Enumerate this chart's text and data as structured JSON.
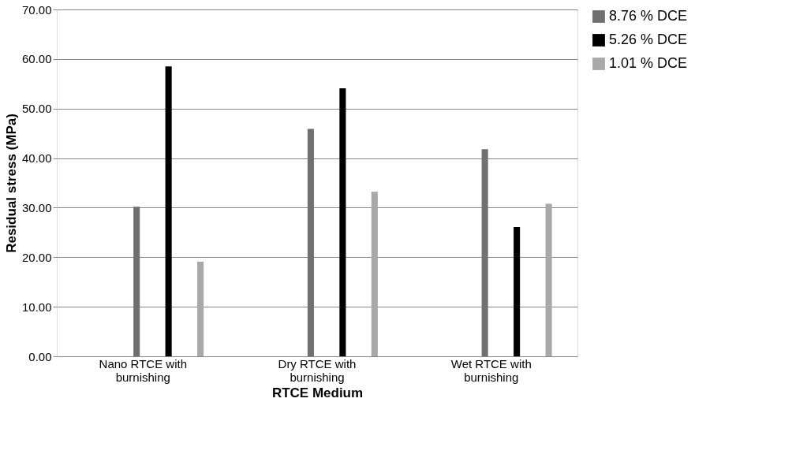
{
  "chart_data": {
    "type": "bar",
    "xlabel": "RTCE Medium",
    "ylabel": "Residual  stress (MPa)",
    "categories": [
      "Nano RTCE with burnishing",
      "Dry RTCE with burnishing",
      "Wet RTCE with burnishing"
    ],
    "series": [
      {
        "name": "8.76 % DCE",
        "color": "#707070",
        "values": [
          30.2,
          45.9,
          41.8
        ]
      },
      {
        "name": "5.26 % DCE",
        "color": "#000000",
        "values": [
          58.5,
          54.1,
          26.1
        ]
      },
      {
        "name": "1.01 % DCE",
        "color": "#a8a8a8",
        "values": [
          19.1,
          33.2,
          30.8
        ]
      }
    ],
    "ylim": [
      0,
      70
    ],
    "yticks": [
      {
        "value": 0,
        "label": "0.00"
      },
      {
        "value": 10,
        "label": "10.00"
      },
      {
        "value": 20,
        "label": "20.00"
      },
      {
        "value": 30,
        "label": "30.00"
      },
      {
        "value": 40,
        "label": "40.00"
      },
      {
        "value": 50,
        "label": "50.00"
      },
      {
        "value": 60,
        "label": "60.00"
      },
      {
        "value": 70,
        "label": "70.00"
      }
    ],
    "grid": "y",
    "legend": "right"
  }
}
